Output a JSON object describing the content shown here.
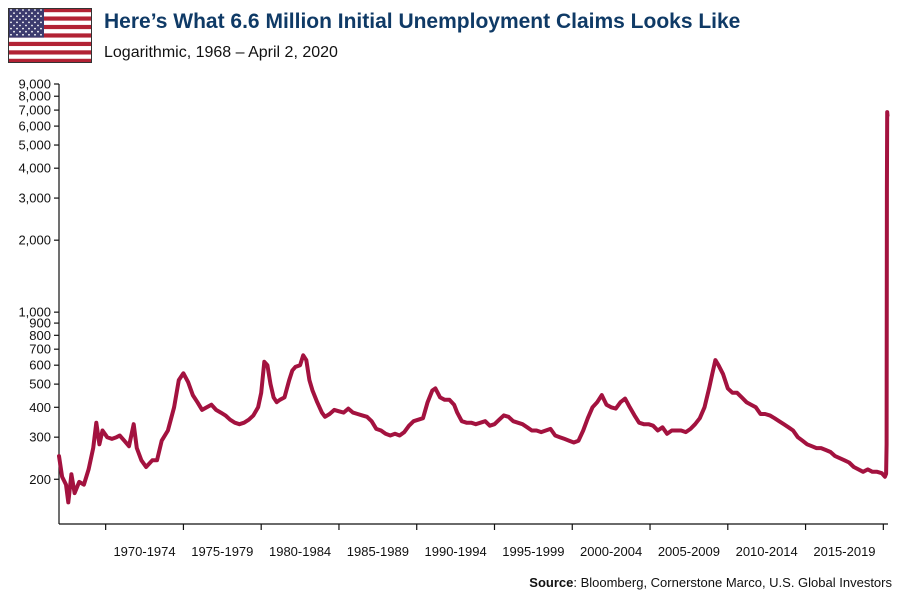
{
  "header": {
    "title": "Here’s What 6.6 Million Initial Unemployment Claims Looks Like",
    "subtitle": "Logarithmic, 1968 – April 2, 2020",
    "flag_icon": "us-flag-icon"
  },
  "footer": {
    "source_label": "Source",
    "source_text": ": Bloomberg, Cornerstone Marco, U.S. Global Investors"
  },
  "colors": {
    "line": "#a3123f",
    "title": "#0f3a66",
    "axis": "#111111",
    "flag_red": "#b22234",
    "flag_blue": "#3c3b6e"
  },
  "chart_data": {
    "type": "line",
    "title": "Here’s What 6.6 Million Initial Unemployment Claims Looks Like",
    "subtitle": "Logarithmic, 1968 – April 2, 2020",
    "xlabel": "",
    "ylabel": "",
    "y_scale": "log",
    "ylim": [
      130,
      9000
    ],
    "xlim": [
      1967.0,
      2020.3
    ],
    "grid": false,
    "y_ticks": [
      200,
      300,
      400,
      500,
      600,
      700,
      800,
      900,
      1000,
      2000,
      3000,
      4000,
      5000,
      6000,
      7000,
      8000,
      9000
    ],
    "y_tick_labels": [
      "200",
      "300",
      "400",
      "500",
      "600",
      "700",
      "800",
      "900",
      "1,000",
      "2,000",
      "3,000",
      "4,000",
      "5,000",
      "6,000",
      "7,000",
      "8,000",
      "9,000"
    ],
    "x_categories": [
      "1970-1974",
      "1975-1979",
      "1980-1984",
      "1985-1989",
      "1990-1994",
      "1995-1999",
      "2000-2004",
      "2005-2009",
      "2010-2014",
      "2015-2019"
    ],
    "series": [
      {
        "points": [
          [
            1967.0,
            250
          ],
          [
            1967.2,
            205
          ],
          [
            1967.45,
            190
          ],
          [
            1967.6,
            160
          ],
          [
            1967.8,
            210
          ],
          [
            1968.0,
            175
          ],
          [
            1968.3,
            195
          ],
          [
            1968.6,
            190
          ],
          [
            1968.9,
            220
          ],
          [
            1969.2,
            270
          ],
          [
            1969.4,
            345
          ],
          [
            1969.6,
            280
          ],
          [
            1969.8,
            320
          ],
          [
            1970.1,
            300
          ],
          [
            1970.4,
            295
          ],
          [
            1970.7,
            300
          ],
          [
            1970.9,
            305
          ],
          [
            1971.2,
            290
          ],
          [
            1971.5,
            275
          ],
          [
            1971.8,
            340
          ],
          [
            1972.0,
            270
          ],
          [
            1972.3,
            240
          ],
          [
            1972.6,
            225
          ],
          [
            1973.0,
            240
          ],
          [
            1973.3,
            240
          ],
          [
            1973.6,
            290
          ],
          [
            1974.0,
            320
          ],
          [
            1974.4,
            400
          ],
          [
            1974.7,
            520
          ],
          [
            1975.0,
            555
          ],
          [
            1975.3,
            510
          ],
          [
            1975.6,
            450
          ],
          [
            1975.9,
            420
          ],
          [
            1976.2,
            390
          ],
          [
            1976.5,
            400
          ],
          [
            1976.8,
            410
          ],
          [
            1977.1,
            390
          ],
          [
            1977.4,
            380
          ],
          [
            1977.7,
            370
          ],
          [
            1978.0,
            355
          ],
          [
            1978.3,
            345
          ],
          [
            1978.6,
            340
          ],
          [
            1978.9,
            345
          ],
          [
            1979.2,
            355
          ],
          [
            1979.5,
            370
          ],
          [
            1979.8,
            400
          ],
          [
            1980.0,
            460
          ],
          [
            1980.2,
            620
          ],
          [
            1980.4,
            600
          ],
          [
            1980.6,
            500
          ],
          [
            1980.8,
            440
          ],
          [
            1981.0,
            420
          ],
          [
            1981.2,
            430
          ],
          [
            1981.5,
            440
          ],
          [
            1981.8,
            520
          ],
          [
            1982.0,
            570
          ],
          [
            1982.2,
            590
          ],
          [
            1982.5,
            600
          ],
          [
            1982.7,
            660
          ],
          [
            1982.9,
            630
          ],
          [
            1983.1,
            520
          ],
          [
            1983.3,
            470
          ],
          [
            1983.6,
            420
          ],
          [
            1983.9,
            380
          ],
          [
            1984.1,
            365
          ],
          [
            1984.4,
            375
          ],
          [
            1984.7,
            390
          ],
          [
            1985.0,
            385
          ],
          [
            1985.3,
            380
          ],
          [
            1985.6,
            395
          ],
          [
            1985.9,
            380
          ],
          [
            1986.2,
            375
          ],
          [
            1986.5,
            370
          ],
          [
            1986.8,
            365
          ],
          [
            1987.1,
            350
          ],
          [
            1987.4,
            325
          ],
          [
            1987.7,
            320
          ],
          [
            1988.0,
            310
          ],
          [
            1988.3,
            305
          ],
          [
            1988.6,
            310
          ],
          [
            1988.9,
            305
          ],
          [
            1989.2,
            315
          ],
          [
            1989.5,
            335
          ],
          [
            1989.8,
            350
          ],
          [
            1990.1,
            355
          ],
          [
            1990.4,
            360
          ],
          [
            1990.7,
            420
          ],
          [
            1991.0,
            470
          ],
          [
            1991.2,
            480
          ],
          [
            1991.5,
            440
          ],
          [
            1991.8,
            430
          ],
          [
            1992.1,
            430
          ],
          [
            1992.4,
            410
          ],
          [
            1992.6,
            380
          ],
          [
            1992.9,
            350
          ],
          [
            1993.2,
            345
          ],
          [
            1993.5,
            345
          ],
          [
            1993.8,
            340
          ],
          [
            1994.1,
            345
          ],
          [
            1994.4,
            350
          ],
          [
            1994.7,
            335
          ],
          [
            1995.0,
            340
          ],
          [
            1995.3,
            355
          ],
          [
            1995.6,
            370
          ],
          [
            1995.9,
            365
          ],
          [
            1996.2,
            350
          ],
          [
            1996.5,
            345
          ],
          [
            1996.8,
            340
          ],
          [
            1997.1,
            330
          ],
          [
            1997.4,
            320
          ],
          [
            1997.7,
            320
          ],
          [
            1998.0,
            315
          ],
          [
            1998.3,
            320
          ],
          [
            1998.6,
            325
          ],
          [
            1998.9,
            305
          ],
          [
            1999.2,
            300
          ],
          [
            1999.5,
            295
          ],
          [
            1999.8,
            290
          ],
          [
            2000.1,
            285
          ],
          [
            2000.4,
            290
          ],
          [
            2000.7,
            320
          ],
          [
            2001.0,
            360
          ],
          [
            2001.3,
            400
          ],
          [
            2001.6,
            420
          ],
          [
            2001.9,
            450
          ],
          [
            2002.2,
            410
          ],
          [
            2002.5,
            400
          ],
          [
            2002.8,
            395
          ],
          [
            2003.1,
            420
          ],
          [
            2003.4,
            435
          ],
          [
            2003.7,
            400
          ],
          [
            2004.0,
            370
          ],
          [
            2004.3,
            345
          ],
          [
            2004.6,
            340
          ],
          [
            2004.9,
            340
          ],
          [
            2005.2,
            335
          ],
          [
            2005.5,
            320
          ],
          [
            2005.8,
            330
          ],
          [
            2006.1,
            310
          ],
          [
            2006.4,
            320
          ],
          [
            2006.7,
            320
          ],
          [
            2007.0,
            320
          ],
          [
            2007.3,
            315
          ],
          [
            2007.6,
            325
          ],
          [
            2007.9,
            340
          ],
          [
            2008.2,
            360
          ],
          [
            2008.5,
            400
          ],
          [
            2008.8,
            480
          ],
          [
            2009.0,
            550
          ],
          [
            2009.2,
            630
          ],
          [
            2009.4,
            600
          ],
          [
            2009.7,
            550
          ],
          [
            2010.0,
            480
          ],
          [
            2010.3,
            460
          ],
          [
            2010.6,
            460
          ],
          [
            2010.9,
            440
          ],
          [
            2011.2,
            420
          ],
          [
            2011.5,
            410
          ],
          [
            2011.8,
            400
          ],
          [
            2012.1,
            375
          ],
          [
            2012.4,
            375
          ],
          [
            2012.7,
            370
          ],
          [
            2013.0,
            360
          ],
          [
            2013.3,
            350
          ],
          [
            2013.6,
            340
          ],
          [
            2013.9,
            330
          ],
          [
            2014.2,
            320
          ],
          [
            2014.5,
            300
          ],
          [
            2014.8,
            290
          ],
          [
            2015.1,
            280
          ],
          [
            2015.4,
            275
          ],
          [
            2015.7,
            270
          ],
          [
            2016.0,
            270
          ],
          [
            2016.3,
            265
          ],
          [
            2016.6,
            260
          ],
          [
            2016.9,
            250
          ],
          [
            2017.2,
            245
          ],
          [
            2017.5,
            240
          ],
          [
            2017.8,
            235
          ],
          [
            2018.1,
            225
          ],
          [
            2018.4,
            220
          ],
          [
            2018.7,
            215
          ],
          [
            2019.0,
            220
          ],
          [
            2019.3,
            215
          ],
          [
            2019.6,
            215
          ],
          [
            2019.9,
            212
          ],
          [
            2020.1,
            205
          ],
          [
            2020.18,
            211
          ],
          [
            2020.21,
            281
          ],
          [
            2020.23,
            3307
          ],
          [
            2020.25,
            6867
          ],
          [
            2020.27,
            6648
          ]
        ]
      }
    ]
  }
}
